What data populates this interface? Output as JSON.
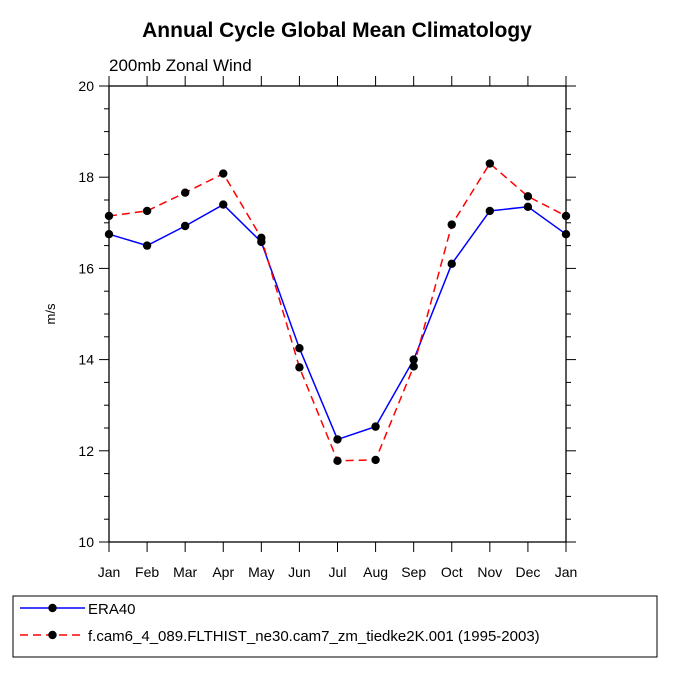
{
  "chart_data": {
    "type": "line",
    "title": "Annual Cycle Global Mean Climatology",
    "subtitle": "200mb Zonal Wind",
    "xlabel": "",
    "ylabel": "m/s",
    "categories": [
      "Jan",
      "Feb",
      "Mar",
      "Apr",
      "May",
      "Jun",
      "Jul",
      "Aug",
      "Sep",
      "Oct",
      "Nov",
      "Dec",
      "Jan"
    ],
    "ylim": [
      10,
      20
    ],
    "yticks": [
      "10",
      "12",
      "14",
      "16",
      "18",
      "20"
    ],
    "grid": false,
    "legend_placement": "bottom",
    "series": [
      {
        "name": "ERA40",
        "color": "#0000ff",
        "line_style": "solid",
        "marker": "filled-circle",
        "values": [
          16.75,
          16.5,
          16.93,
          17.4,
          16.58,
          14.25,
          12.25,
          12.53,
          14.0,
          16.1,
          17.26,
          17.35,
          16.75
        ]
      },
      {
        "name": "f.cam6_4_089.FLTHIST_ne30.cam7_zm_tiedke2K.001 (1995-2003)",
        "color": "#ff0000",
        "line_style": "dashed",
        "marker": "filled-circle",
        "values": [
          17.15,
          17.26,
          17.66,
          18.08,
          16.67,
          13.83,
          11.78,
          11.8,
          13.85,
          16.96,
          18.3,
          17.58,
          17.15
        ]
      }
    ]
  }
}
